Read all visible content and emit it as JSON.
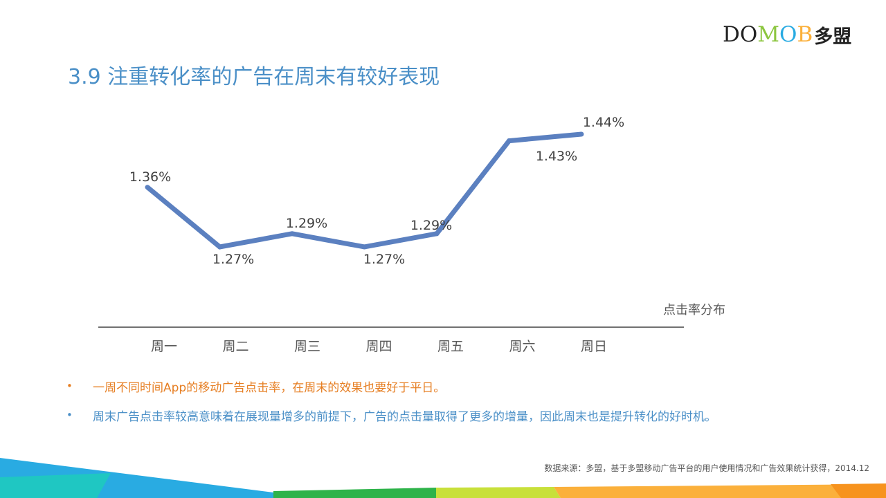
{
  "logo": {
    "letters": [
      "D",
      "O",
      "M",
      "O",
      "B"
    ],
    "colors": [
      "#222222",
      "#222222",
      "#8cc63f",
      "#29abe2",
      "#fbb03b"
    ],
    "chinese": "多盟"
  },
  "title": "3.9 注重转化率的广告在周末有较好表现",
  "chart_data": {
    "type": "line",
    "categories": [
      "周一",
      "周二",
      "周三",
      "周四",
      "周五",
      "周六",
      "周日"
    ],
    "values": [
      1.36,
      1.27,
      1.29,
      1.27,
      1.29,
      1.43,
      1.44
    ],
    "data_labels": [
      "1.36%",
      "1.27%",
      "1.29%",
      "1.27%",
      "1.29%",
      "1.43%",
      "1.44%"
    ],
    "series_label": "点击率分布",
    "line_color": "#5b80c0",
    "grid": false
  },
  "bullets": [
    {
      "text": "一周不同时间App的移动广告点击率，在周末的效果也要好于平日。",
      "color": "#e67e22"
    },
    {
      "text": "周末广告点击率较高意味着在展现量增多的前提下，广告的点击量取得了更多的增量，因此周末也是提升转化的好时机。",
      "color": "#4a8fc7"
    }
  ],
  "source": "数据来源：多盟，基于多盟移动广告平台的用户使用情况和广告效果统计获得，2014.12"
}
